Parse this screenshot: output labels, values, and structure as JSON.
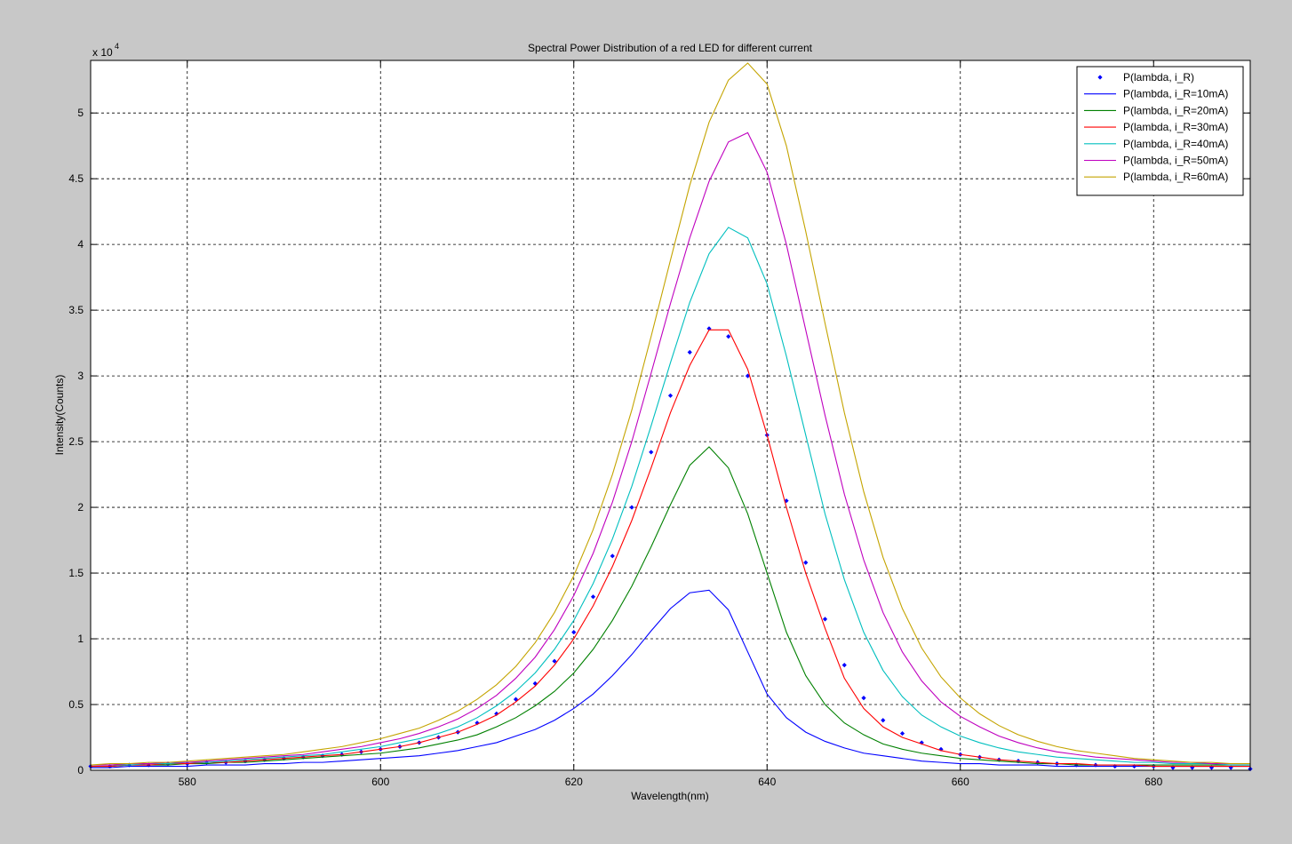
{
  "chart_data": {
    "type": "line",
    "title": "Spectral Power Distribution of a red LED for different current",
    "x_label": "Wavelength(nm)",
    "y_label": "Intensity(Counts)",
    "y_exponent": {
      "base": "x 10",
      "power": "4"
    },
    "xlim": [
      570,
      690
    ],
    "ylim": [
      0,
      5.4
    ],
    "xticks": [
      580,
      600,
      620,
      640,
      660,
      680
    ],
    "yticks": [
      0,
      0.5,
      1,
      1.5,
      2,
      2.5,
      3,
      3.5,
      4,
      4.5,
      5
    ],
    "grid": true,
    "legend": "upper right",
    "x": [
      570,
      572,
      574,
      576,
      578,
      580,
      582,
      584,
      586,
      588,
      590,
      592,
      594,
      596,
      598,
      600,
      602,
      604,
      606,
      608,
      610,
      612,
      614,
      616,
      618,
      620,
      622,
      624,
      626,
      628,
      630,
      632,
      634,
      636,
      638,
      640,
      642,
      644,
      646,
      648,
      650,
      652,
      654,
      656,
      658,
      660,
      662,
      664,
      666,
      668,
      670,
      672,
      674,
      676,
      678,
      680,
      682,
      684,
      686,
      688,
      690
    ],
    "series": [
      {
        "name": "P(lambda, i_R)",
        "color": "#0000ff",
        "mode": "markers",
        "values": [
          0.03,
          0.03,
          0.04,
          0.04,
          0.05,
          0.05,
          0.06,
          0.06,
          0.07,
          0.08,
          0.09,
          0.1,
          0.11,
          0.12,
          0.14,
          0.16,
          0.18,
          0.21,
          0.25,
          0.29,
          0.36,
          0.43,
          0.54,
          0.66,
          0.83,
          1.05,
          1.32,
          1.63,
          2.0,
          2.42,
          2.85,
          3.18,
          3.36,
          3.3,
          3.0,
          2.55,
          2.05,
          1.58,
          1.15,
          0.8,
          0.55,
          0.38,
          0.28,
          0.21,
          0.16,
          0.12,
          0.1,
          0.08,
          0.07,
          0.06,
          0.05,
          0.04,
          0.04,
          0.03,
          0.03,
          0.03,
          0.02,
          0.02,
          0.02,
          0.02,
          0.01
        ]
      },
      {
        "name": "P(lambda, i_R=10mA)",
        "color": "#0000ff",
        "mode": "lines",
        "values": [
          0.02,
          0.02,
          0.03,
          0.03,
          0.03,
          0.03,
          0.04,
          0.04,
          0.04,
          0.05,
          0.05,
          0.06,
          0.06,
          0.07,
          0.08,
          0.09,
          0.1,
          0.11,
          0.13,
          0.15,
          0.18,
          0.21,
          0.26,
          0.31,
          0.38,
          0.47,
          0.58,
          0.72,
          0.88,
          1.06,
          1.23,
          1.35,
          1.37,
          1.22,
          0.9,
          0.58,
          0.4,
          0.29,
          0.22,
          0.17,
          0.13,
          0.11,
          0.09,
          0.07,
          0.06,
          0.05,
          0.05,
          0.04,
          0.04,
          0.04,
          0.03,
          0.03,
          0.03,
          0.03,
          0.03,
          0.03,
          0.03,
          0.03,
          0.03,
          0.03,
          0.03
        ]
      },
      {
        "name": "P(lambda, i_R=20mA)",
        "color": "#008000",
        "mode": "lines",
        "values": [
          0.03,
          0.03,
          0.04,
          0.04,
          0.04,
          0.05,
          0.05,
          0.06,
          0.06,
          0.07,
          0.08,
          0.09,
          0.1,
          0.11,
          0.12,
          0.13,
          0.15,
          0.17,
          0.2,
          0.23,
          0.27,
          0.33,
          0.4,
          0.49,
          0.6,
          0.74,
          0.92,
          1.14,
          1.4,
          1.7,
          2.02,
          2.32,
          2.46,
          2.3,
          1.95,
          1.5,
          1.05,
          0.72,
          0.5,
          0.36,
          0.27,
          0.2,
          0.16,
          0.13,
          0.11,
          0.09,
          0.08,
          0.07,
          0.06,
          0.05,
          0.05,
          0.04,
          0.04,
          0.04,
          0.04,
          0.04,
          0.04,
          0.04,
          0.04,
          0.04,
          0.04
        ]
      },
      {
        "name": "P(lambda, i_R=30mA)",
        "color": "#ff0000",
        "mode": "lines",
        "values": [
          0.03,
          0.03,
          0.04,
          0.04,
          0.05,
          0.05,
          0.06,
          0.06,
          0.07,
          0.08,
          0.09,
          0.1,
          0.11,
          0.12,
          0.14,
          0.16,
          0.18,
          0.21,
          0.25,
          0.29,
          0.35,
          0.42,
          0.52,
          0.64,
          0.8,
          1.0,
          1.25,
          1.55,
          1.9,
          2.3,
          2.72,
          3.08,
          3.35,
          3.35,
          3.05,
          2.55,
          2.0,
          1.5,
          1.08,
          0.7,
          0.47,
          0.33,
          0.25,
          0.2,
          0.15,
          0.12,
          0.1,
          0.08,
          0.07,
          0.06,
          0.05,
          0.05,
          0.04,
          0.04,
          0.04,
          0.03,
          0.03,
          0.03,
          0.03,
          0.03,
          0.03
        ]
      },
      {
        "name": "P(lambda, i_R=40mA)",
        "color": "#00bfbf",
        "mode": "lines",
        "values": [
          0.04,
          0.04,
          0.04,
          0.05,
          0.05,
          0.06,
          0.06,
          0.07,
          0.08,
          0.09,
          0.1,
          0.11,
          0.12,
          0.14,
          0.16,
          0.18,
          0.21,
          0.24,
          0.28,
          0.33,
          0.4,
          0.49,
          0.6,
          0.74,
          0.92,
          1.14,
          1.42,
          1.76,
          2.16,
          2.62,
          3.1,
          3.56,
          3.93,
          4.13,
          4.05,
          3.7,
          3.15,
          2.55,
          1.95,
          1.45,
          1.05,
          0.76,
          0.56,
          0.42,
          0.33,
          0.26,
          0.21,
          0.17,
          0.14,
          0.12,
          0.1,
          0.09,
          0.08,
          0.07,
          0.06,
          0.06,
          0.05,
          0.05,
          0.05,
          0.04,
          0.04
        ]
      },
      {
        "name": "P(lambda, i_R=50mA)",
        "color": "#bf00bf",
        "mode": "lines",
        "values": [
          0.04,
          0.04,
          0.05,
          0.05,
          0.06,
          0.06,
          0.07,
          0.08,
          0.09,
          0.1,
          0.11,
          0.12,
          0.14,
          0.16,
          0.18,
          0.21,
          0.24,
          0.28,
          0.33,
          0.39,
          0.47,
          0.57,
          0.7,
          0.86,
          1.07,
          1.33,
          1.65,
          2.04,
          2.5,
          3.02,
          3.55,
          4.05,
          4.48,
          4.78,
          4.85,
          4.55,
          4.0,
          3.35,
          2.7,
          2.1,
          1.6,
          1.2,
          0.9,
          0.68,
          0.52,
          0.41,
          0.33,
          0.26,
          0.21,
          0.17,
          0.14,
          0.12,
          0.1,
          0.09,
          0.08,
          0.07,
          0.06,
          0.06,
          0.05,
          0.05,
          0.05
        ]
      },
      {
        "name": "P(lambda, i_R=60mA)",
        "color": "#c4a400",
        "mode": "lines",
        "values": [
          0.04,
          0.05,
          0.05,
          0.06,
          0.06,
          0.07,
          0.08,
          0.09,
          0.1,
          0.11,
          0.12,
          0.14,
          0.16,
          0.18,
          0.21,
          0.24,
          0.28,
          0.32,
          0.38,
          0.45,
          0.54,
          0.65,
          0.79,
          0.97,
          1.2,
          1.48,
          1.83,
          2.25,
          2.74,
          3.3,
          3.88,
          4.45,
          4.93,
          5.25,
          5.38,
          5.22,
          4.75,
          4.1,
          3.4,
          2.72,
          2.12,
          1.62,
          1.23,
          0.93,
          0.71,
          0.55,
          0.43,
          0.34,
          0.27,
          0.22,
          0.18,
          0.15,
          0.13,
          0.11,
          0.09,
          0.08,
          0.07,
          0.06,
          0.06,
          0.05,
          0.05
        ]
      }
    ]
  }
}
